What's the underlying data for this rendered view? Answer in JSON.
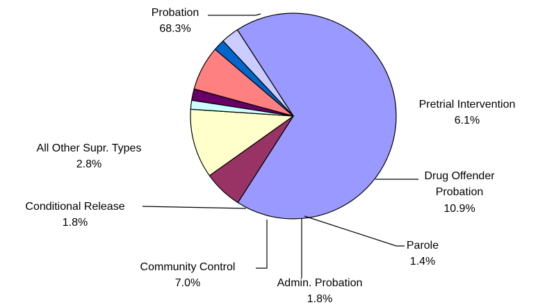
{
  "chart_data": {
    "type": "pie",
    "title": "",
    "start_angle_deg": -123,
    "direction": "clockwise",
    "slices": [
      {
        "name": "Probation",
        "value": 68.3,
        "label": "68.3%",
        "color": "#9999ff"
      },
      {
        "name": "Pretrial Intervention",
        "value": 6.1,
        "label": "6.1%",
        "color": "#993366"
      },
      {
        "name_lines": [
          "Drug Offender",
          "Probation"
        ],
        "value": 10.9,
        "label": "10.9%",
        "color": "#ffffcc"
      },
      {
        "name": "Parole",
        "value": 1.4,
        "label": "1.4%",
        "color": "#ccffff"
      },
      {
        "name": "Admin. Probation",
        "value": 1.8,
        "label": "1.8%",
        "color": "#660066"
      },
      {
        "name": "Community Control",
        "value": 7.0,
        "label": "7.0%",
        "color": "#ff8080"
      },
      {
        "name": "Conditional Release",
        "value": 1.8,
        "label": "1.8%",
        "color": "#0066cc"
      },
      {
        "name": "All Other Supr. Types",
        "value": 2.8,
        "label": "2.8%",
        "color": "#ccccff"
      }
    ]
  }
}
